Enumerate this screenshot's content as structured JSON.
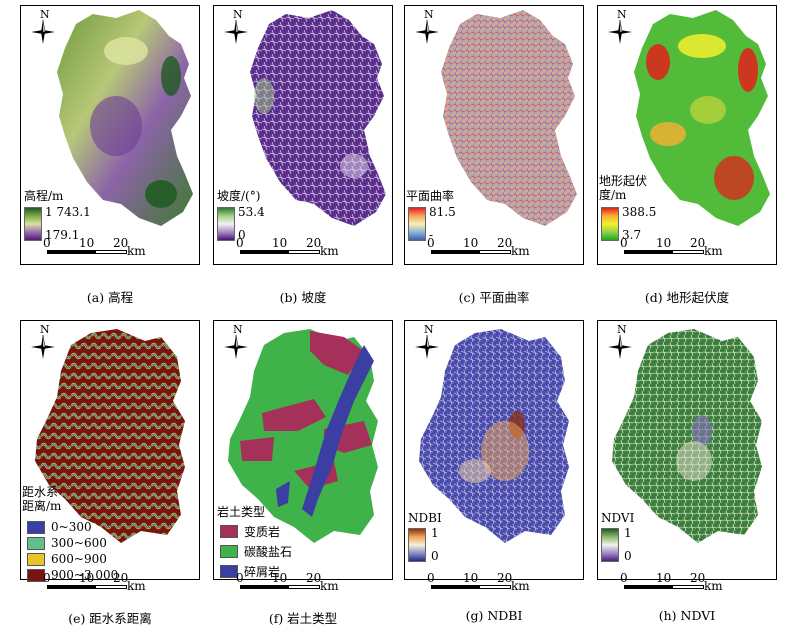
{
  "north_label": "N",
  "scale": {
    "ticks": [
      "0",
      "10",
      "20"
    ],
    "unit": "km"
  },
  "panels": {
    "a": {
      "caption": "(a) 高程",
      "legend_title": "高程/m",
      "max": "1 743.1",
      "min": "179.1",
      "ramp": [
        "#1f5a1f",
        "#7fa84a",
        "#d9e2a0",
        "#9a6fae",
        "#4b1d6e"
      ]
    },
    "b": {
      "caption": "(b) 坡度",
      "legend_title": "坡度/(°)",
      "max": "53.4",
      "min": "0",
      "ramp": [
        "#2f7a2f",
        "#a7d08c",
        "#f2f2f2",
        "#a98ac8",
        "#3e1a6a"
      ]
    },
    "c": {
      "caption": "(c) 平面曲率",
      "legend_title": "平面曲率",
      "max": "81.5",
      "min": "-",
      "ramp": [
        "#e8211c",
        "#f4a662",
        "#f7f0b6",
        "#8fb6d8",
        "#3a5fb0"
      ]
    },
    "d": {
      "caption": "(d) 地形起伏度",
      "legend_title": [
        "地形起伏",
        "度/m"
      ],
      "max": "388.5",
      "min": "3.7",
      "ramp": [
        "#e0201b",
        "#f9b233",
        "#f5ef2f",
        "#8fd34a",
        "#22a722"
      ]
    },
    "e": {
      "caption": "(e) 距水系距离",
      "legend_title": [
        "距水系",
        "距离/m"
      ],
      "classes": [
        {
          "label": "0~300",
          "color": "#3a3fa5"
        },
        {
          "label": "300~600",
          "color": "#5fbf8f"
        },
        {
          "label": "600~900",
          "color": "#e6c52b"
        },
        {
          "label": "900~3 000",
          "color": "#7a1410"
        }
      ]
    },
    "f": {
      "caption": "(f) 岩土类型",
      "legend_title": "岩土类型",
      "classes": [
        {
          "label": "变质岩",
          "color": "#a5305a"
        },
        {
          "label": "碳酸盐石",
          "color": "#3fb34a"
        },
        {
          "label": "碎屑岩",
          "color": "#3b3fa3"
        }
      ]
    },
    "g": {
      "caption": "(g) NDBI",
      "legend_title": "NDBI",
      "max": "1",
      "min": "0",
      "ramp": [
        "#8b2e14",
        "#f0a85a",
        "#f6efd6",
        "#8f90cc",
        "#262a86"
      ]
    },
    "h": {
      "caption": "(h) NDVI",
      "legend_title": "NDVI",
      "max": "1",
      "min": "0",
      "ramp": [
        "#1f5a1f",
        "#8fb870",
        "#f2f2ea",
        "#a38ac8",
        "#4b1e7a"
      ]
    }
  }
}
